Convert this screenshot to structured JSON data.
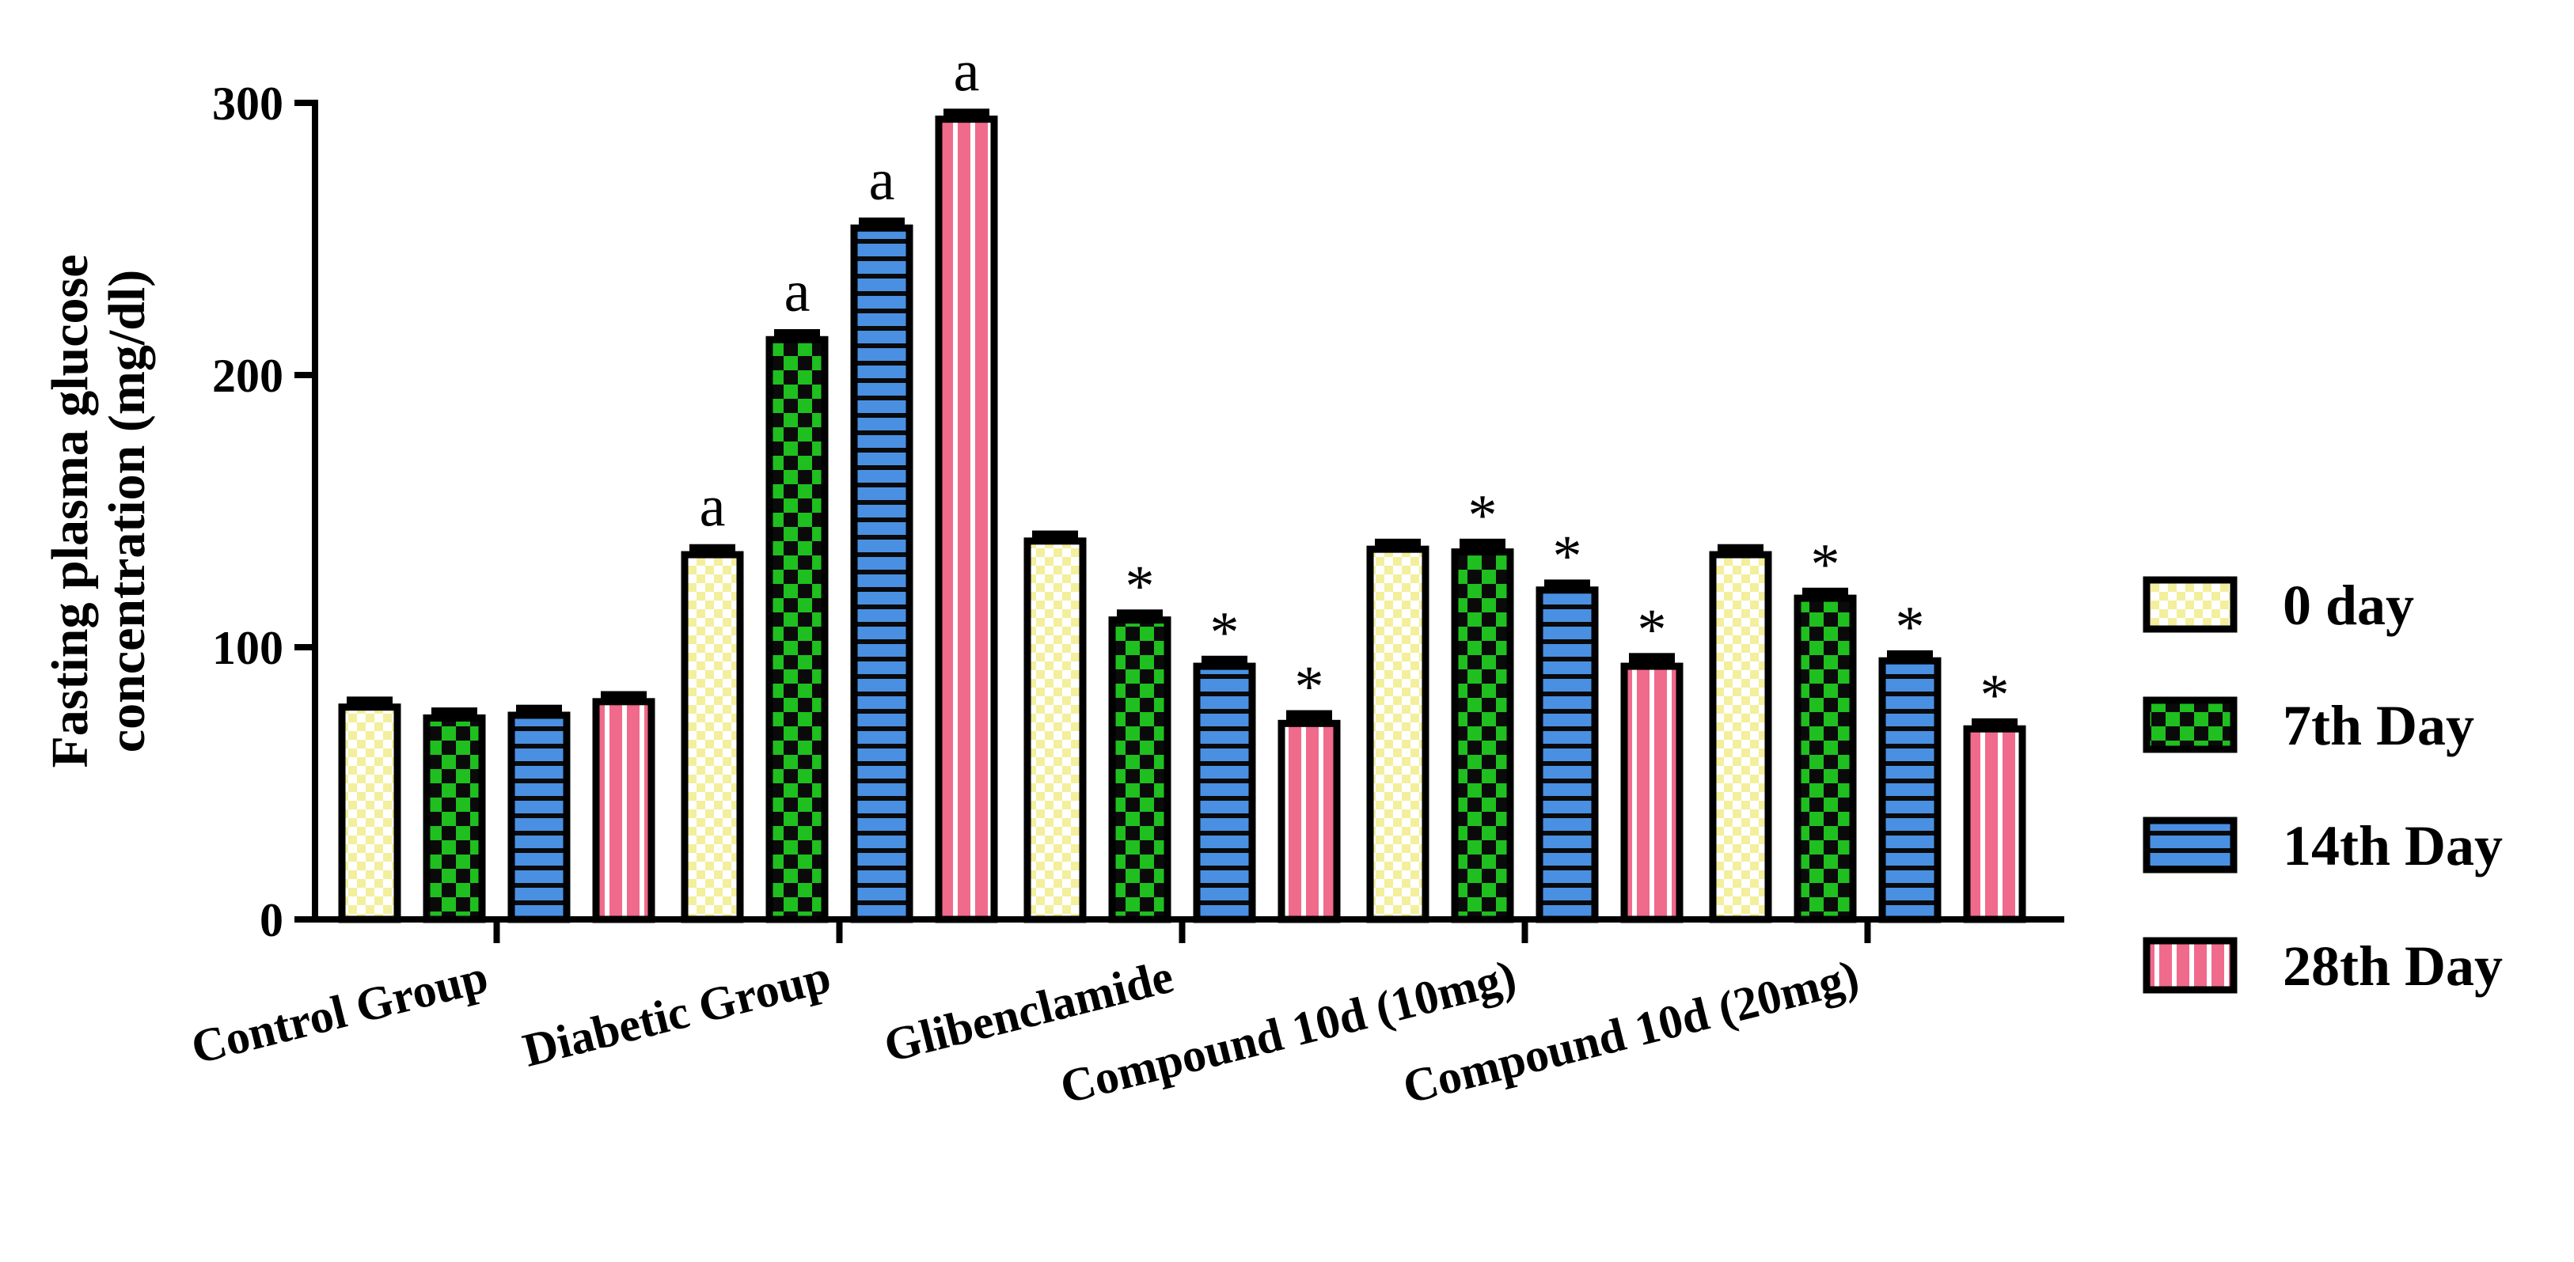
{
  "chart_data": {
    "type": "bar",
    "title": "",
    "xlabel": "",
    "ylabel_lines": [
      "Fasting plasma glucose",
      "concentration (mg/dl)"
    ],
    "ylim": [
      0,
      300
    ],
    "yticks": [
      0,
      100,
      200,
      300
    ],
    "categories": [
      "Control Group",
      "Diabetic Group",
      "Glibenclamide",
      "Compound 10d (10mg)",
      "Compound 10d (20mg)"
    ],
    "series": [
      {
        "name": "0 day",
        "color": "#f3ef9c",
        "pattern": "checker-small",
        "values": [
          78,
          134,
          139,
          136,
          134
        ],
        "errors": [
          3,
          3,
          3,
          3,
          3
        ],
        "annotations": [
          "",
          "a",
          "",
          "",
          ""
        ]
      },
      {
        "name": "7th Day",
        "color": "#1fbf1f",
        "pattern": "checker-large",
        "values": [
          74,
          213,
          110,
          135,
          118
        ],
        "errors": [
          3,
          3,
          3,
          4,
          3
        ],
        "annotations": [
          "",
          "a",
          "*",
          "*",
          "*"
        ]
      },
      {
        "name": "14th Day",
        "color": "#4a90e2",
        "pattern": "horizontal",
        "values": [
          75,
          254,
          93,
          121,
          95
        ],
        "errors": [
          3,
          3,
          3,
          3,
          3
        ],
        "annotations": [
          "",
          "a",
          "*",
          "*",
          "*"
        ]
      },
      {
        "name": "28th Day",
        "color": "#f06a8c",
        "pattern": "vertical",
        "values": [
          80,
          294,
          72,
          93,
          70
        ],
        "errors": [
          3,
          3,
          4,
          4,
          3
        ],
        "annotations": [
          "",
          "a",
          "*",
          "*",
          "*"
        ]
      }
    ],
    "legend_position": "right",
    "grid": false
  }
}
